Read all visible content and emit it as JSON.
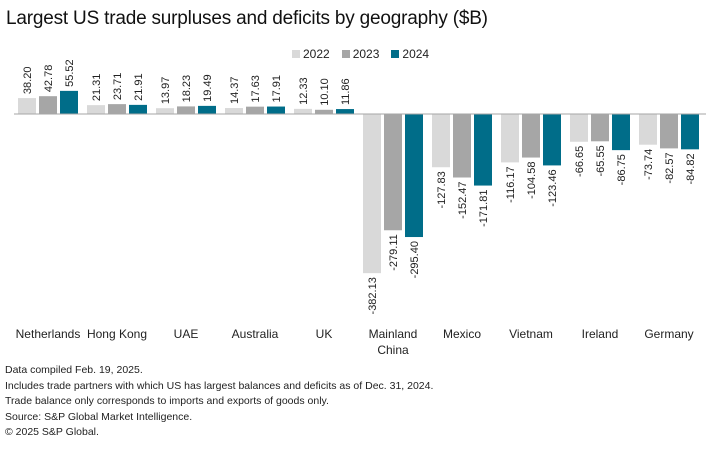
{
  "chart_data": {
    "type": "bar",
    "title": "Largest US trade surpluses and deficits by geography ($B)",
    "xlabel": "",
    "ylabel": "",
    "grid": false,
    "legend_position": "top-right",
    "ylim": [
      -382.13,
      55.52
    ],
    "categories": [
      "Netherlands",
      "Hong Kong",
      "UAE",
      "Australia",
      "UK",
      "Mainland China",
      "Mexico",
      "Vietnam",
      "Ireland",
      "Germany"
    ],
    "category_label_lines": [
      [
        "Netherlands"
      ],
      [
        "Hong Kong"
      ],
      [
        "UAE"
      ],
      [
        "Australia"
      ],
      [
        "UK"
      ],
      [
        "Mainland",
        "China"
      ],
      [
        "Mexico"
      ],
      [
        "Vietnam"
      ],
      [
        "Ireland"
      ],
      [
        "Germany"
      ]
    ],
    "series": [
      {
        "name": "2022",
        "color": "#d9d9d9",
        "values": [
          38.2,
          21.31,
          13.97,
          14.37,
          12.33,
          -382.13,
          -127.83,
          -116.17,
          -66.65,
          -73.74
        ],
        "labels": [
          "38.20",
          "21.31",
          "13.97",
          "14.37",
          "12.33",
          "-382.13",
          "-127.83",
          "-116.17",
          "-66.65",
          "-73.74"
        ]
      },
      {
        "name": "2023",
        "color": "#a6a6a6",
        "values": [
          42.78,
          23.71,
          18.23,
          17.63,
          10.1,
          -279.11,
          -152.47,
          -104.58,
          -65.55,
          -82.57
        ],
        "labels": [
          "42.78",
          "23.71",
          "18.23",
          "17.63",
          "10.10",
          "-279.11",
          "-152.47",
          "-104.58",
          "-65.55",
          "-82.57"
        ]
      },
      {
        "name": "2024",
        "color": "#006d89",
        "values": [
          55.52,
          21.91,
          19.49,
          17.91,
          11.86,
          -295.4,
          -171.81,
          -123.46,
          -86.75,
          -84.82
        ],
        "labels": [
          "55.52",
          "21.91",
          "19.49",
          "17.91",
          "11.86",
          "-295.40",
          "-171.81",
          "-123.46",
          "-86.75",
          "-84.82"
        ]
      }
    ]
  },
  "notes": [
    "Data compiled Feb. 19, 2025.",
    "Includes trade partners with which US has largest balances and deficits as of Dec. 31, 2024.",
    "Trade balance only corresponds to imports and exports of goods only.",
    "Source: S&P Global Market Intelligence.",
    "© 2025 S&P Global."
  ]
}
